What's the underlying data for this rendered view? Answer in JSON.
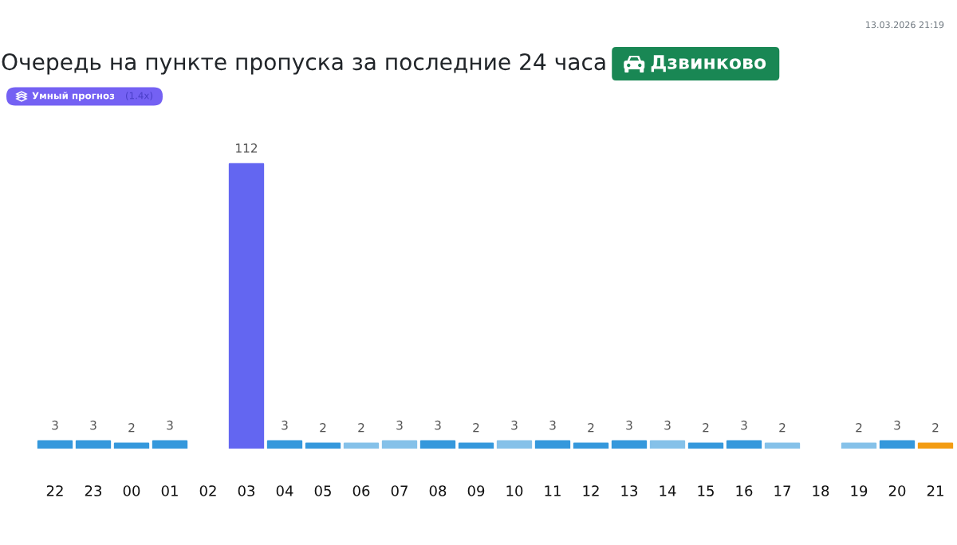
{
  "chart_data": {
    "type": "bar",
    "title": "Очередь на пункте пропуска за последние 24 часа",
    "subtitle": "Дзвинково",
    "categories": [
      "22",
      "23",
      "00",
      "01",
      "02",
      "03",
      "04",
      "05",
      "06",
      "07",
      "08",
      "09",
      "10",
      "11",
      "12",
      "13",
      "14",
      "15",
      "16",
      "17",
      "18",
      "19",
      "20",
      "21"
    ],
    "values": [
      3,
      3,
      2,
      3,
      null,
      112,
      3,
      2,
      2,
      3,
      3,
      2,
      3,
      3,
      2,
      3,
      3,
      2,
      3,
      2,
      null,
      2,
      3,
      2
    ],
    "colors": [
      "#3598dc",
      "#3598dc",
      "#3598dc",
      "#3598dc",
      null,
      "#6366f1",
      "#3598dc",
      "#3598dc",
      "#85c1e9",
      "#85c1e9",
      "#3598dc",
      "#3598dc",
      "#85c1e9",
      "#3598dc",
      "#3598dc",
      "#3598dc",
      "#85c1e9",
      "#3598dc",
      "#3598dc",
      "#85c1e9",
      null,
      "#85c1e9",
      "#3598dc",
      "#f39c12"
    ],
    "data_labels": true,
    "annotations": [
      "13.03.2026 21:19",
      "Умный прогноз",
      "(1.4x)"
    ]
  }
}
